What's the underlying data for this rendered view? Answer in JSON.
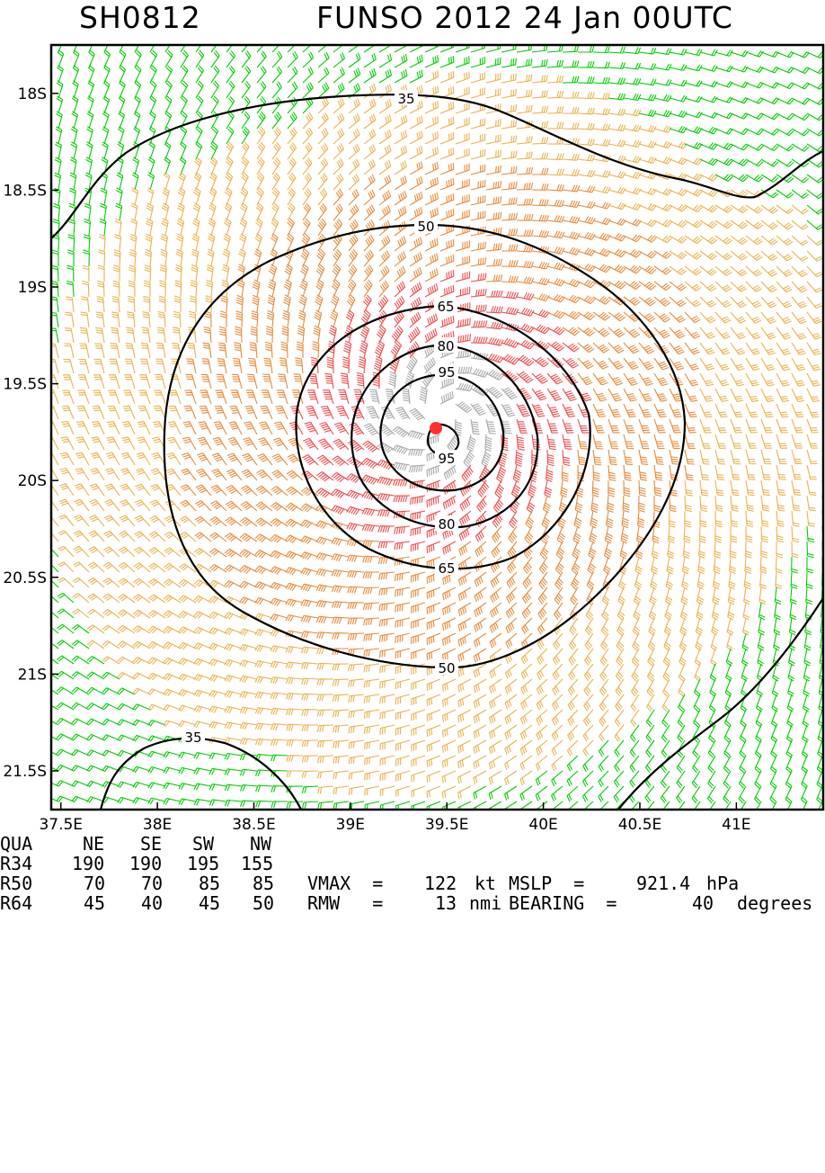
{
  "header": {
    "storm_id": "SH0812",
    "storm_title": "FUNSO 2012 24 Jan 00UTC"
  },
  "colors": {
    "barb_35_50": "#e6b450",
    "barb_50_65": "#e88a3a",
    "barb_65_95": "#ee4c4c",
    "barb_95_plus": "#a8a8a8",
    "barb_below_35": "#00cc00",
    "contour": "#000000",
    "center_marker": "#ff3030"
  },
  "map": {
    "lon_range": [
      37.45,
      41.45
    ],
    "lat_range": [
      -21.7,
      -17.75
    ],
    "lon_ticks": [
      "37.5E",
      "38E",
      "38.5E",
      "39E",
      "39.5E",
      "40E",
      "40.5E",
      "41E"
    ],
    "lat_ticks": [
      "18S",
      "18.5S",
      "19S",
      "19.5S",
      "20S",
      "20.5S",
      "21S",
      "21.5S"
    ],
    "center": {
      "lon": 39.47,
      "lat": -19.65
    },
    "contour_labels": [
      "35",
      "50",
      "65",
      "80",
      "95",
      "95",
      "80",
      "65",
      "50",
      "35"
    ]
  },
  "table": {
    "headers": [
      "QUA",
      "NE",
      "SE",
      "SW",
      "NW"
    ],
    "rows": [
      {
        "label": "R34",
        "values": [
          "190",
          "190",
          "195",
          "155"
        ]
      },
      {
        "label": "R50",
        "values": [
          "70",
          "70",
          "85",
          "85"
        ]
      },
      {
        "label": "R64",
        "values": [
          "45",
          "40",
          "45",
          "50"
        ]
      }
    ]
  },
  "stats": {
    "vmax_label": "VMAX  =",
    "vmax_value": "122",
    "vmax_unit": "kt",
    "mslp_label": "MSLP  =",
    "mslp_value": "921.4",
    "mslp_unit": "hPa",
    "rmw_label": "RMW   =",
    "rmw_value": "13",
    "rmw_unit": "nmi",
    "bearing_label": "BEARING  =",
    "bearing_value": "40",
    "bearing_unit": "degrees"
  }
}
